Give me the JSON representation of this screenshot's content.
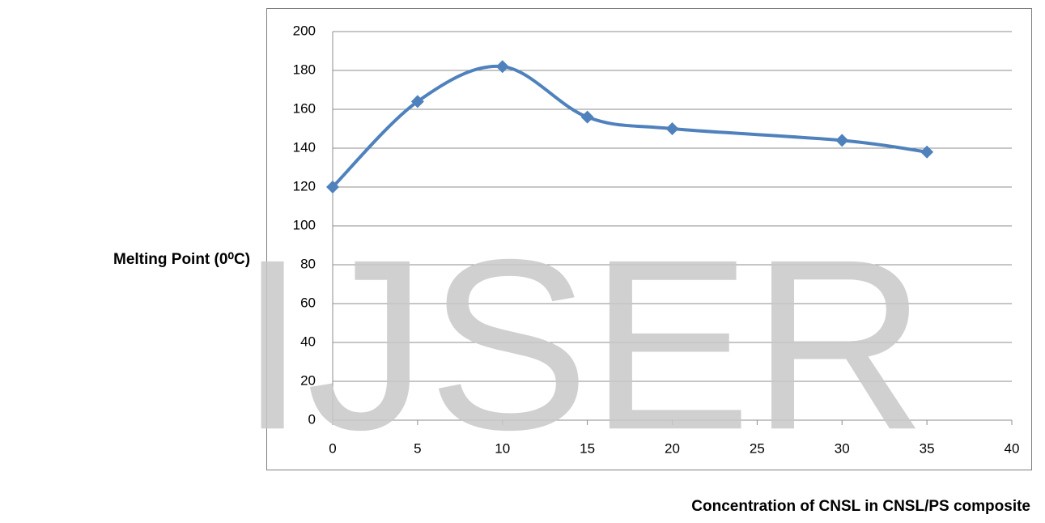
{
  "chart_data": {
    "type": "line",
    "y_label": "Melting Point (0⁰C)",
    "x_label": "Concentration of CNSL in CNSL/PS composite",
    "watermark": "IJSER",
    "x": [
      0,
      5,
      10,
      15,
      20,
      30,
      35
    ],
    "series": [
      {
        "color": "#4f81bd",
        "values": [
          120,
          164,
          182,
          156,
          150,
          144,
          138
        ]
      }
    ],
    "xlim": [
      0,
      40
    ],
    "xticks": [
      0,
      5,
      10,
      15,
      20,
      25,
      30,
      35,
      40
    ],
    "ylim": [
      0,
      200
    ],
    "yticks": [
      0,
      20,
      40,
      60,
      80,
      100,
      120,
      140,
      160,
      180,
      200
    ],
    "grid": true
  }
}
